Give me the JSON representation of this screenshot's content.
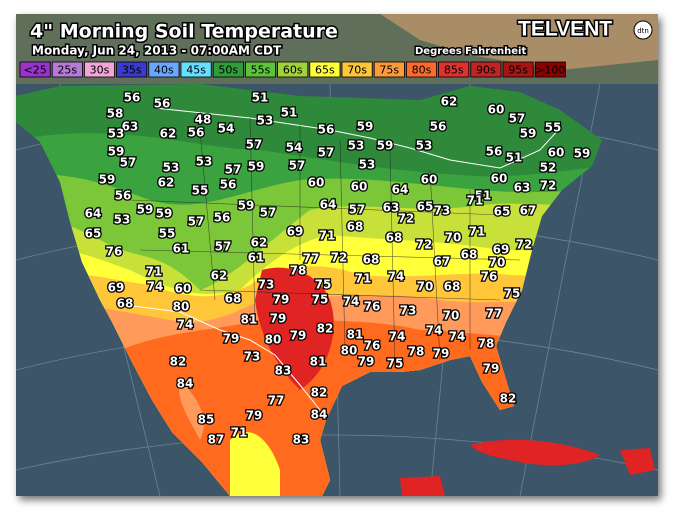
{
  "header": {
    "title": "4\" Morning Soil Temperature",
    "subtitle": "Monday, Jun 24, 2013 - 07:00AM CDT",
    "brand": "TELVENT",
    "brand_badge": "dtn",
    "units": "Degrees Fahrenheit"
  },
  "legend": [
    {
      "label": "<25",
      "color": "#9a33cc"
    },
    {
      "label": "25s",
      "color": "#b47ad6"
    },
    {
      "label": "30s",
      "color": "#f2a6d8"
    },
    {
      "label": "35s",
      "color": "#3a3acf"
    },
    {
      "label": "40s",
      "color": "#6aa8ff"
    },
    {
      "label": "45s",
      "color": "#66e0ff"
    },
    {
      "label": "50s",
      "color": "#2e9e3a"
    },
    {
      "label": "55s",
      "color": "#5cc43a"
    },
    {
      "label": "60s",
      "color": "#a2d23a"
    },
    {
      "label": "65s",
      "color": "#ffff3a"
    },
    {
      "label": "70s",
      "color": "#ffc63a"
    },
    {
      "label": "75s",
      "color": "#ff9a3a"
    },
    {
      "label": "80s",
      "color": "#ff6a2e"
    },
    {
      "label": "85s",
      "color": "#e03030"
    },
    {
      "label": "90s",
      "color": "#c02424"
    },
    {
      "label": "95s",
      "color": "#a81414"
    },
    {
      "label": ">100",
      "color": "#8a0000"
    }
  ],
  "stations": [
    56,
    56,
    51,
    62,
    60,
    57,
    58,
    63,
    48,
    56,
    53,
    51,
    54,
    62,
    53,
    59,
    56,
    56,
    59,
    55,
    59,
    57,
    54,
    57,
    53,
    59,
    53,
    56,
    51,
    60,
    59,
    57,
    53,
    57,
    59,
    57,
    53,
    60,
    52,
    53,
    59,
    62,
    56,
    55,
    60,
    60,
    72,
    63,
    60,
    64,
    51,
    56,
    59,
    59,
    59,
    57,
    64,
    57,
    63,
    72,
    65,
    73,
    71,
    65,
    67,
    64,
    53,
    57,
    56,
    55,
    69,
    71,
    68,
    68,
    65,
    61,
    57,
    62,
    72,
    70,
    71,
    69,
    72,
    76,
    61,
    78,
    77,
    72,
    68,
    67,
    68,
    70,
    71,
    62,
    71,
    74,
    76,
    69,
    74,
    60,
    73,
    75,
    70,
    68,
    80,
    68,
    79,
    75,
    74,
    76,
    75,
    68,
    73,
    70,
    77,
    74,
    81,
    79,
    82,
    81,
    74,
    74,
    74,
    79,
    80,
    79,
    80,
    76,
    78,
    79,
    78,
    73,
    82,
    81,
    79,
    75,
    83,
    79,
    84,
    82,
    77,
    82,
    84,
    85,
    79,
    87,
    71,
    83
  ]
}
